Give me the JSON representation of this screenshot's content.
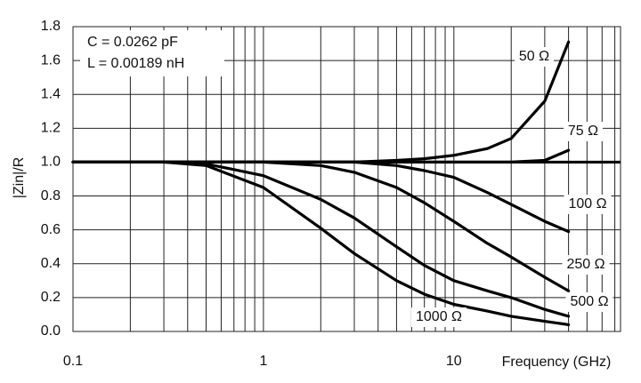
{
  "chart_data": {
    "type": "line",
    "x_label": "Frequency (GHz)",
    "y_label": "|Zin|/R",
    "annotations": [
      "C = 0.0262 pF",
      "L = 0.00189 nH"
    ],
    "x_log": true,
    "xlim": [
      0.1,
      75
    ],
    "xticks": [
      0.1,
      1,
      10
    ],
    "xminor": [
      0.2,
      0.3,
      0.4,
      0.5,
      0.6,
      0.7,
      0.8,
      0.9,
      2,
      3,
      4,
      5,
      6,
      7,
      8,
      9,
      20,
      30,
      40,
      50,
      60,
      70
    ],
    "ylim": [
      0,
      1.8
    ],
    "yticks": [
      {
        "value": 0,
        "label": "0.0"
      },
      0.2,
      0.4,
      0.6,
      0.8,
      {
        "value": 1,
        "label": "1.0"
      },
      1.2,
      1.4,
      1.6,
      1.8
    ],
    "grid": true,
    "reference_line": 1,
    "x": [
      0.1,
      0.3,
      0.5,
      1,
      2,
      3,
      5,
      7,
      10,
      15,
      20,
      30,
      40
    ],
    "series": [
      {
        "name": "50 Ω",
        "color": "#000000",
        "values": [
          1,
          1,
          1,
          1,
          1,
          1,
          1.01,
          1.02,
          1.04,
          1.08,
          1.14,
          1.36,
          1.71
        ]
      },
      {
        "name": "75 Ω",
        "color": "#000000",
        "values": [
          1,
          1,
          1,
          1,
          1,
          1,
          1,
          1,
          1,
          1,
          1,
          1.01,
          1.07
        ]
      },
      {
        "name": "100 Ω",
        "color": "#000000",
        "values": [
          1,
          1,
          1,
          1,
          1,
          1,
          0.98,
          0.95,
          0.91,
          0.82,
          0.75,
          0.65,
          0.59
        ]
      },
      {
        "name": "250 Ω",
        "color": "#000000",
        "values": [
          1,
          1,
          1,
          1,
          0.98,
          0.94,
          0.85,
          0.76,
          0.65,
          0.52,
          0.44,
          0.32,
          0.24
        ]
      },
      {
        "name": "500 Ω",
        "color": "#000000",
        "values": [
          1,
          1,
          0.99,
          0.92,
          0.78,
          0.67,
          0.5,
          0.39,
          0.3,
          0.24,
          0.2,
          0.13,
          0.09
        ]
      },
      {
        "name": "1000 Ω",
        "color": "#000000",
        "values": [
          1,
          1,
          0.98,
          0.85,
          0.61,
          0.46,
          0.3,
          0.22,
          0.16,
          0.12,
          0.09,
          0.06,
          0.04
        ]
      }
    ]
  }
}
